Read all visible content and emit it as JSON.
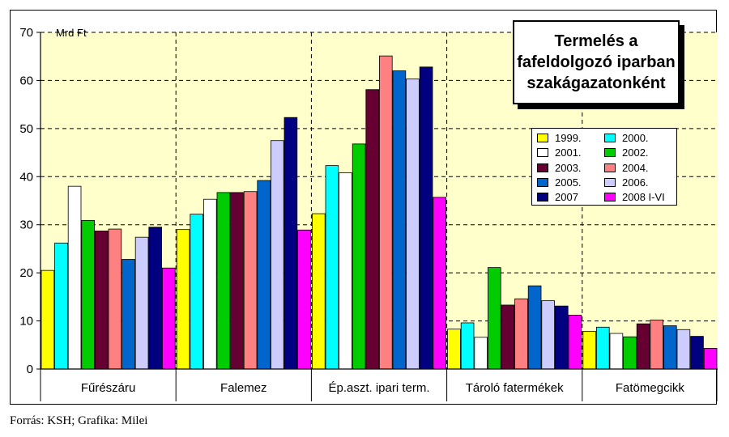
{
  "title_lines": [
    "Termelés a",
    "fafeldolgozó iparban",
    "szakágazatonként"
  ],
  "source": "Forrás: KSH; Grafika: Milei",
  "chart_data": {
    "type": "bar",
    "ylabel": "Mrd Ft",
    "ylim": [
      0,
      70
    ],
    "yticks": [
      0,
      10,
      20,
      30,
      40,
      50,
      60,
      70
    ],
    "grid": true,
    "legend_position": "right",
    "categories": [
      "Fűrészáru",
      "Falemez",
      "Ép.aszt. ipari term.",
      "Tároló fatermékek",
      "Fatömegcikk"
    ],
    "series": [
      {
        "name": "1999.",
        "color": "#ffff00",
        "values": [
          20.5,
          29,
          32.3,
          8.3,
          7.8
        ]
      },
      {
        "name": "2000.",
        "color": "#00ffff",
        "values": [
          26.2,
          32.2,
          42.3,
          9.6,
          8.7
        ]
      },
      {
        "name": "2001.",
        "color": "#ffffff",
        "values": [
          38,
          35.3,
          40.8,
          6.6,
          7.4
        ]
      },
      {
        "name": "2002.",
        "color": "#00cc00",
        "values": [
          30.9,
          36.7,
          46.8,
          21.1,
          6.7
        ]
      },
      {
        "name": "2003.",
        "color": "#660033",
        "values": [
          28.7,
          36.7,
          58.1,
          13.3,
          9.4
        ]
      },
      {
        "name": "2004.",
        "color": "#ff8080",
        "values": [
          29.1,
          36.9,
          65.1,
          14.6,
          10.2
        ]
      },
      {
        "name": "2005.",
        "color": "#0066cc",
        "values": [
          22.8,
          39.2,
          62,
          17.3,
          9
        ]
      },
      {
        "name": "2006.",
        "color": "#ccccff",
        "values": [
          27.4,
          47.5,
          60.3,
          14.2,
          8.2
        ]
      },
      {
        "name": "2007",
        "color": "#000080",
        "values": [
          29.5,
          52.3,
          62.8,
          13.1,
          6.8
        ]
      },
      {
        "name": "2008 I-VI",
        "color": "#ff00ff",
        "values": [
          21,
          28.9,
          35.7,
          11.2,
          4.3
        ]
      }
    ]
  }
}
